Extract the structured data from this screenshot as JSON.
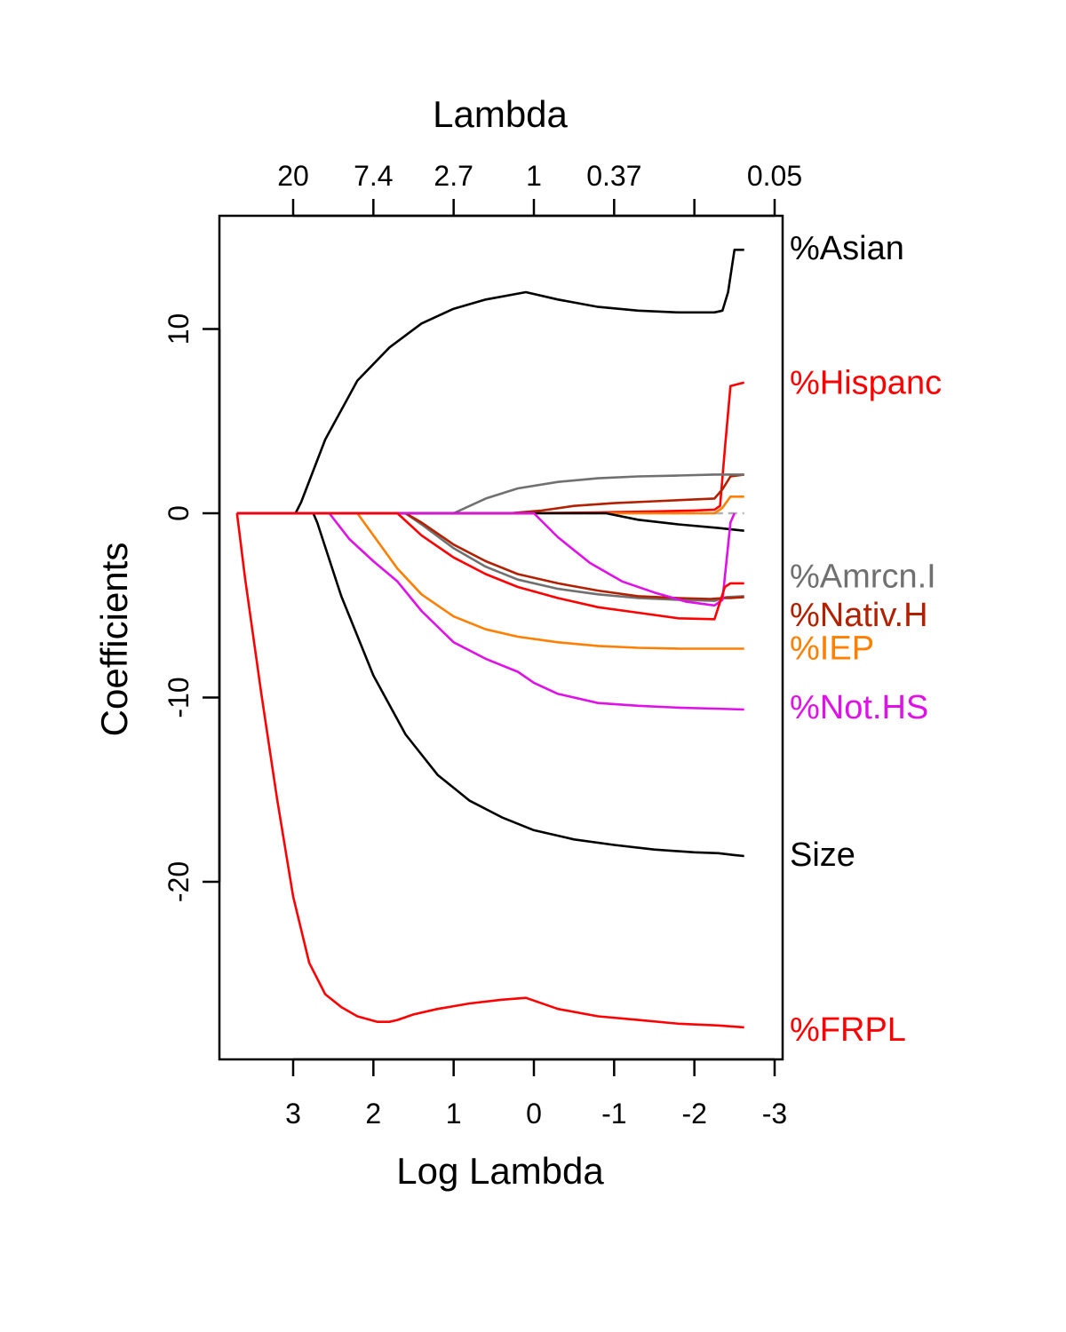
{
  "chart_data": {
    "type": "line",
    "top_axis_title": "Lambda",
    "xlabel": "Log Lambda",
    "ylabel": "Coefficients",
    "xlim": [
      3.7,
      -3.0
    ],
    "ylim": [
      -29.5,
      14.5
    ],
    "bottom_ticks": [
      {
        "value": 3,
        "label": "3"
      },
      {
        "value": 2,
        "label": "2"
      },
      {
        "value": 1,
        "label": "1"
      },
      {
        "value": 0,
        "label": "0"
      },
      {
        "value": -1,
        "label": "-1"
      },
      {
        "value": -2,
        "label": "-2"
      },
      {
        "value": -3,
        "label": "-3"
      }
    ],
    "top_ticks": [
      {
        "value": 3,
        "label": "20"
      },
      {
        "value": 2,
        "label": "7.4"
      },
      {
        "value": 1,
        "label": "2.7"
      },
      {
        "value": 0,
        "label": "1"
      },
      {
        "value": -1,
        "label": "0.37"
      },
      {
        "value": -2,
        "label": ""
      },
      {
        "value": -3,
        "label": "0.05"
      }
    ],
    "y_ticks": [
      {
        "value": 10,
        "label": "10"
      },
      {
        "value": 0,
        "label": "0"
      },
      {
        "value": -10,
        "label": "-10"
      },
      {
        "value": -20,
        "label": "-20"
      }
    ],
    "zero_line": {
      "color": "#b0b0b0",
      "style": "dashed"
    },
    "grid": false,
    "series": [
      {
        "name": "%Asian",
        "color": "#000000",
        "label_y": 14.4,
        "x": [
          3.7,
          2.97,
          2.9,
          2.6,
          2.2,
          1.8,
          1.4,
          1.0,
          0.6,
          0.1,
          -0.3,
          -0.8,
          -1.3,
          -1.8,
          -2.25,
          -2.35,
          -2.42,
          -2.5,
          -2.62
        ],
        "y": [
          0,
          0,
          0.6,
          4.0,
          7.2,
          9.0,
          10.3,
          11.1,
          11.6,
          12.0,
          11.6,
          11.2,
          11.0,
          10.9,
          10.9,
          11.0,
          12.0,
          14.3,
          14.3
        ]
      },
      {
        "name": "%Hispanc",
        "color": "#ff0000",
        "label_y": 7.1,
        "x": [
          3.7,
          0.3,
          -0.8,
          -1.5,
          -2.0,
          -2.25,
          -2.32,
          -2.38,
          -2.45,
          -2.62
        ],
        "y": [
          0,
          0,
          0.05,
          0.1,
          0.15,
          0.2,
          0.4,
          3.5,
          6.9,
          7.1
        ]
      },
      {
        "name": "%Amrcn.I",
        "color": "#707070",
        "label_y": -3.4,
        "x": [
          3.7,
          1.6,
          1.4,
          1.0,
          0.6,
          0.2,
          -0.3,
          -0.8,
          -1.3,
          -1.8,
          -2.25,
          -2.4,
          -2.62
        ],
        "y": [
          0,
          0,
          -0.6,
          -1.9,
          -2.9,
          -3.6,
          -4.1,
          -4.4,
          -4.6,
          -4.7,
          -4.75,
          -4.55,
          -4.5
        ]
      },
      {
        "name": "%Nativ.H",
        "color": "#b22000",
        "label_y": -5.5,
        "x": [
          3.7,
          1.6,
          1.4,
          1.0,
          0.6,
          0.2,
          -0.3,
          -0.8,
          -1.3,
          -1.8,
          -2.2,
          -2.35,
          -2.45,
          -2.62
        ],
        "y": [
          0,
          0,
          -0.5,
          -1.7,
          -2.6,
          -3.3,
          -3.8,
          -4.2,
          -4.5,
          -4.6,
          -4.65,
          -4.6,
          -4.6,
          -4.55
        ]
      },
      {
        "name": "%IEP",
        "color": "#ff7f00",
        "label_y": -7.3,
        "x": [
          3.7,
          2.2,
          2.0,
          1.7,
          1.4,
          1.0,
          0.6,
          0.2,
          -0.3,
          -0.8,
          -1.3,
          -1.8,
          -2.25,
          -2.62
        ],
        "y": [
          0,
          0,
          -1.2,
          -3.0,
          -4.4,
          -5.6,
          -6.3,
          -6.7,
          -7.0,
          -7.2,
          -7.3,
          -7.35,
          -7.35,
          -7.35
        ]
      },
      {
        "name": "%Not.HS",
        "color": "#e010e8",
        "label_y": -10.5,
        "x": [
          3.7,
          2.55,
          2.3,
          2.0,
          1.7,
          1.4,
          1.0,
          0.6,
          0.2,
          0.0,
          -0.3,
          -0.8,
          -1.3,
          -1.8,
          -2.25,
          -2.62
        ],
        "y": [
          0,
          0,
          -1.4,
          -2.6,
          -3.7,
          -5.3,
          -7.0,
          -7.9,
          -8.6,
          -9.2,
          -9.8,
          -10.3,
          -10.45,
          -10.55,
          -10.6,
          -10.65
        ]
      },
      {
        "name": "Size",
        "color": "#000000",
        "label_y": -18.5,
        "x": [
          3.7,
          2.75,
          2.7,
          2.4,
          2.0,
          1.6,
          1.2,
          0.8,
          0.4,
          0.0,
          -0.5,
          -1.0,
          -1.5,
          -2.0,
          -2.3,
          -2.5,
          -2.62
        ],
        "y": [
          0,
          0,
          -0.5,
          -4.5,
          -8.8,
          -12.0,
          -14.2,
          -15.6,
          -16.5,
          -17.2,
          -17.7,
          -18.0,
          -18.25,
          -18.4,
          -18.45,
          -18.55,
          -18.6
        ]
      },
      {
        "name": "%FRPL",
        "color": "#ff0000",
        "label_y": -28.0,
        "x": [
          3.7,
          3.6,
          3.4,
          3.2,
          3.0,
          2.8,
          2.6,
          2.4,
          2.2,
          1.95,
          1.8,
          1.7,
          1.5,
          1.2,
          0.8,
          0.4,
          0.1,
          -0.3,
          -0.8,
          -1.3,
          -1.8,
          -2.3,
          -2.62
        ],
        "y": [
          0,
          -3.5,
          -9.7,
          -15.5,
          -20.8,
          -24.4,
          -26.1,
          -26.8,
          -27.3,
          -27.6,
          -27.6,
          -27.5,
          -27.2,
          -26.9,
          -26.6,
          -26.4,
          -26.3,
          -26.9,
          -27.3,
          -27.5,
          -27.7,
          -27.8,
          -27.9
        ]
      },
      {
        "name": "",
        "color": "#b22000",
        "label_y": null,
        "x": [
          3.7,
          0.3,
          -0.1,
          -0.5,
          -1.0,
          -1.5,
          -2.0,
          -2.25,
          -2.35,
          -2.45,
          -2.62
        ],
        "y": [
          0,
          0,
          0.15,
          0.4,
          0.55,
          0.65,
          0.75,
          0.8,
          1.3,
          2.0,
          2.1
        ]
      },
      {
        "name": "",
        "color": "#ff7f00",
        "label_y": null,
        "x": [
          3.7,
          -2.25,
          -2.35,
          -2.45,
          -2.62
        ],
        "y": [
          0,
          0,
          0.3,
          0.9,
          0.9
        ]
      },
      {
        "name": "",
        "color": "#707070",
        "label_y": null,
        "x": [
          3.7,
          1.0,
          0.6,
          0.2,
          -0.3,
          -0.8,
          -1.3,
          -1.8,
          -2.25,
          -2.62
        ],
        "y": [
          0,
          0,
          0.8,
          1.35,
          1.7,
          1.9,
          2.0,
          2.05,
          2.1,
          2.1
        ]
      },
      {
        "name": "",
        "color": "#000000",
        "label_y": null,
        "x": [
          3.7,
          -0.9,
          -1.3,
          -1.8,
          -2.3,
          -2.62
        ],
        "y": [
          0,
          0,
          -0.35,
          -0.6,
          -0.8,
          -0.95
        ]
      },
      {
        "name": "",
        "color": "#e010e8",
        "label_y": null,
        "x": [
          3.7,
          0.0,
          -0.3,
          -0.7,
          -1.1,
          -1.5,
          -1.9,
          -2.25,
          -2.35,
          -2.45,
          -2.5
        ],
        "y": [
          0,
          0,
          -1.3,
          -2.7,
          -3.7,
          -4.3,
          -4.8,
          -5.0,
          -4.7,
          -0.5,
          0
        ]
      },
      {
        "name": "",
        "color": "#ff0000",
        "label_y": null,
        "x": [
          3.7,
          1.7,
          1.4,
          1.0,
          0.6,
          0.2,
          -0.3,
          -0.8,
          -1.3,
          -1.8,
          -2.25,
          -2.38,
          -2.45,
          -2.62
        ],
        "y": [
          0,
          0,
          -1.2,
          -2.4,
          -3.3,
          -4.0,
          -4.6,
          -5.1,
          -5.4,
          -5.7,
          -5.75,
          -4.0,
          -3.8,
          -3.8
        ]
      }
    ]
  }
}
